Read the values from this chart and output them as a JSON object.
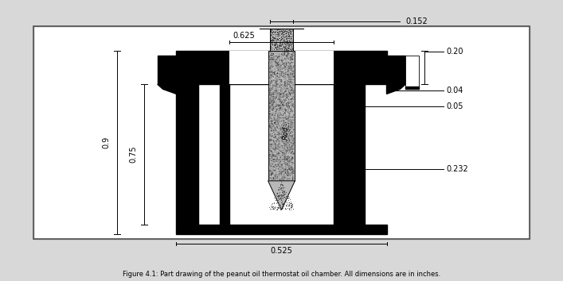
{
  "title": "Figure 4.1: Part drawing of the peanut oil thermostat oil chamber. All dimensions are in inches.",
  "fig_width": 7.07,
  "fig_height": 3.54,
  "dpi": 100,
  "bg_color": "#d8d8d8",
  "drawing_bg": "#ffffff",
  "dims": {
    "d_0152": "0.152",
    "d_0625": "0.625",
    "d_020": "0.20",
    "d_004": "0.04",
    "d_005": "0.05",
    "d_0232": "0.232",
    "d_075": "0.75",
    "d_09": "0.9",
    "d_0525": "0.525",
    "d_rod": "Rod"
  },
  "colors": {
    "black": "#000000",
    "white": "#ffffff",
    "light_bg": "#d8d8d8",
    "rod_fill": "#c0c0c0",
    "border": "#555555"
  }
}
